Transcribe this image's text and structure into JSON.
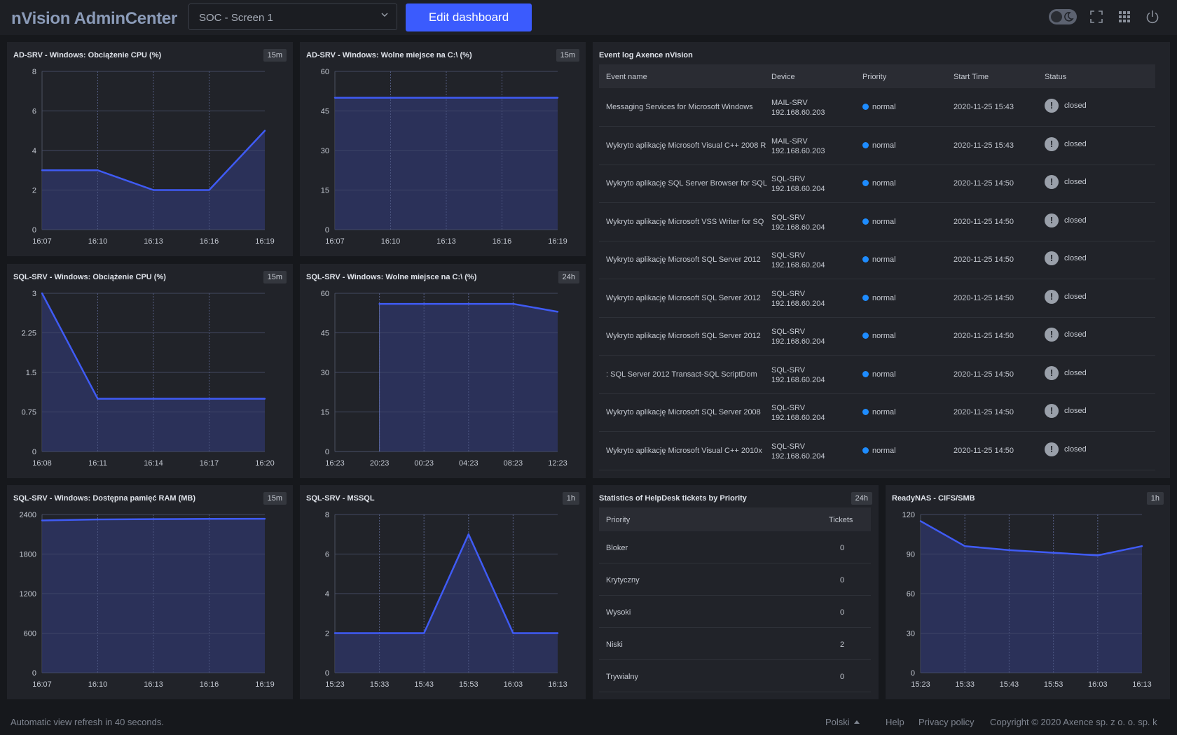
{
  "app": {
    "brand": "nVision AdminCenter",
    "dashboard_select": "SOC - Screen 1",
    "edit_label": "Edit dashboard"
  },
  "colors": {
    "accent": "#3b5bfd",
    "line": "#3f5bf5",
    "area": "#2d3461",
    "priority_dot": "#1e8cff"
  },
  "icons": [
    "moon-icon",
    "fullscreen-icon",
    "apps-grid-icon",
    "power-icon"
  ],
  "panels": {
    "p1": {
      "title": "AD-SRV - Windows: Obciążenie CPU (%)",
      "badge": "15m"
    },
    "p2": {
      "title": "AD-SRV - Windows: Wolne miejsce na C:\\ (%)",
      "badge": "15m"
    },
    "p3": {
      "title": "SQL-SRV - Windows: Obciążenie CPU (%)",
      "badge": "15m"
    },
    "p4": {
      "title": "SQL-SRV - Windows: Wolne miejsce na C:\\ (%)",
      "badge": "24h"
    },
    "p5": {
      "title": "SQL-SRV - Windows: Dostępna pamięć RAM (MB)",
      "badge": "15m"
    },
    "p6": {
      "title": "SQL-SRV - MSSQL",
      "badge": "1h"
    },
    "p7": {
      "title": "ReadyNAS - CIFS/SMB",
      "badge": "1h"
    }
  },
  "chart_data": [
    {
      "id": "p1",
      "type": "area",
      "x": [
        "16:07",
        "16:10",
        "16:13",
        "16:16",
        "16:19"
      ],
      "ylim": [
        0,
        8
      ],
      "yticks": [
        0,
        2,
        4,
        6,
        8
      ],
      "series": [
        {
          "values": [
            3,
            3,
            2,
            2,
            5
          ]
        }
      ]
    },
    {
      "id": "p2",
      "type": "area",
      "x": [
        "16:07",
        "16:10",
        "16:13",
        "16:16",
        "16:19"
      ],
      "ylim": [
        0,
        60
      ],
      "yticks": [
        0,
        15,
        30,
        45,
        60
      ],
      "series": [
        {
          "values": [
            50,
            50,
            50,
            50,
            50
          ]
        }
      ]
    },
    {
      "id": "p3",
      "type": "area",
      "x": [
        "16:08",
        "16:11",
        "16:14",
        "16:17",
        "16:20"
      ],
      "ylim": [
        0,
        3
      ],
      "yticks": [
        0,
        0.75,
        1.5,
        2.25,
        3
      ],
      "series": [
        {
          "values": [
            3,
            1,
            1,
            1,
            1
          ]
        }
      ]
    },
    {
      "id": "p4",
      "type": "area",
      "x": [
        "16:23",
        "20:23",
        "00:23",
        "04:23",
        "08:23",
        "12:23"
      ],
      "ylim": [
        0,
        60
      ],
      "yticks": [
        0,
        15,
        30,
        45,
        60
      ],
      "series": [
        {
          "values": [
            null,
            56,
            56,
            56,
            56,
            53
          ]
        }
      ]
    },
    {
      "id": "p5",
      "type": "area",
      "x": [
        "16:07",
        "16:10",
        "16:13",
        "16:16",
        "16:19"
      ],
      "ylim": [
        0,
        2400
      ],
      "yticks": [
        0,
        600,
        1200,
        1800,
        2400
      ],
      "series": [
        {
          "values": [
            2310,
            2325,
            2330,
            2333,
            2335
          ]
        }
      ]
    },
    {
      "id": "p6",
      "type": "area",
      "x": [
        "15:23",
        "15:33",
        "15:43",
        "15:53",
        "16:03",
        "16:13"
      ],
      "ylim": [
        0,
        8
      ],
      "yticks": [
        0,
        2,
        4,
        6,
        8
      ],
      "series": [
        {
          "values": [
            2,
            2,
            2,
            7,
            2,
            2
          ]
        }
      ]
    },
    {
      "id": "p7",
      "type": "area",
      "x": [
        "15:23",
        "15:33",
        "15:43",
        "15:53",
        "16:03",
        "16:13"
      ],
      "ylim": [
        0,
        120
      ],
      "yticks": [
        0,
        30,
        60,
        90,
        120
      ],
      "series": [
        {
          "values": [
            115,
            96,
            93,
            91,
            89,
            96
          ]
        }
      ]
    }
  ],
  "event_log": {
    "title": "Event log Axence nVision",
    "columns": [
      "Event name",
      "Device",
      "Priority",
      "Start Time",
      "Status"
    ],
    "rows": [
      {
        "name": "Messaging Services for Microsoft Windows",
        "device": "MAIL-SRV",
        "ip": "192.168.60.203",
        "priority": "normal",
        "time": "2020-11-25 15:43",
        "status": "closed"
      },
      {
        "name": "Wykryto aplikację Microsoft Visual C++ 2008 R",
        "device": "MAIL-SRV",
        "ip": "192.168.60.203",
        "priority": "normal",
        "time": "2020-11-25 15:43",
        "status": "closed"
      },
      {
        "name": "Wykryto aplikację SQL Server Browser for SQL",
        "device": "SQL-SRV",
        "ip": "192.168.60.204",
        "priority": "normal",
        "time": "2020-11-25 14:50",
        "status": "closed"
      },
      {
        "name": "Wykryto aplikację Microsoft VSS Writer for SQ",
        "device": "SQL-SRV",
        "ip": "192.168.60.204",
        "priority": "normal",
        "time": "2020-11-25 14:50",
        "status": "closed"
      },
      {
        "name": "Wykryto aplikację Microsoft SQL Server 2012",
        "device": "SQL-SRV",
        "ip": "192.168.60.204",
        "priority": "normal",
        "time": "2020-11-25 14:50",
        "status": "closed"
      },
      {
        "name": "Wykryto aplikację Microsoft SQL Server 2012",
        "device": "SQL-SRV",
        "ip": "192.168.60.204",
        "priority": "normal",
        "time": "2020-11-25 14:50",
        "status": "closed"
      },
      {
        "name": "Wykryto aplikację Microsoft SQL Server 2012",
        "device": "SQL-SRV",
        "ip": "192.168.60.204",
        "priority": "normal",
        "time": "2020-11-25 14:50",
        "status": "closed"
      },
      {
        "name": ": SQL Server 2012 Transact-SQL ScriptDom",
        "device": "SQL-SRV",
        "ip": "192.168.60.204",
        "priority": "normal",
        "time": "2020-11-25 14:50",
        "status": "closed"
      },
      {
        "name": "Wykryto aplikację Microsoft SQL Server 2008",
        "device": "SQL-SRV",
        "ip": "192.168.60.204",
        "priority": "normal",
        "time": "2020-11-25 14:50",
        "status": "closed"
      },
      {
        "name": "Wykryto aplikację Microsoft Visual C++ 2010x",
        "device": "SQL-SRV",
        "ip": "192.168.60.204",
        "priority": "normal",
        "time": "2020-11-25 14:50",
        "status": "closed"
      }
    ]
  },
  "helpdesk": {
    "title": "Statistics of HelpDesk tickets by Priority",
    "badge": "24h",
    "columns": [
      "Priority",
      "Tickets"
    ],
    "rows": [
      {
        "priority": "Bloker",
        "tickets": "0"
      },
      {
        "priority": "Krytyczny",
        "tickets": "0"
      },
      {
        "priority": "Wysoki",
        "tickets": "0"
      },
      {
        "priority": "Niski",
        "tickets": "2"
      },
      {
        "priority": "Trywialny",
        "tickets": "0"
      }
    ]
  },
  "footer": {
    "refresh": "Automatic view refresh in 40 seconds.",
    "language": "Polski",
    "help": "Help",
    "privacy": "Privacy policy",
    "copyright": "Copyright © 2020  Axence sp. z o. o. sp. k"
  }
}
